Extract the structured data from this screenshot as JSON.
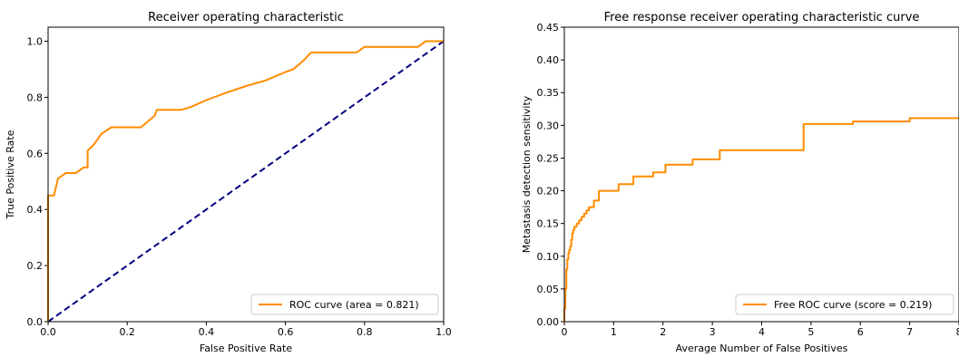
{
  "chart_data": [
    {
      "type": "line",
      "title": "Receiver operating characteristic",
      "xlabel": "False Positive Rate",
      "ylabel": "True Positive Rate",
      "xlim": [
        0.0,
        1.0
      ],
      "ylim": [
        0.0,
        1.05
      ],
      "x_ticks": [
        "0.0",
        "0.2",
        "0.4",
        "0.6",
        "0.8",
        "1.0"
      ],
      "y_ticks": [
        "0.0",
        "0.2",
        "0.4",
        "0.6",
        "0.8",
        "1.0"
      ],
      "legend_position": "lower-right",
      "series": [
        {
          "name": "ROC curve (area = 0.821)",
          "color": "#ff8c00",
          "style": "solid",
          "x": [
            0.0,
            0.0,
            0.0,
            0.015,
            0.025,
            0.045,
            0.07,
            0.09,
            0.1,
            0.1,
            0.115,
            0.135,
            0.16,
            0.19,
            0.235,
            0.245,
            0.27,
            0.275,
            0.3,
            0.335,
            0.36,
            0.4,
            0.45,
            0.5,
            0.55,
            0.6,
            0.62,
            0.645,
            0.665,
            0.78,
            0.79,
            0.8,
            0.87,
            0.935,
            0.955,
            1.0
          ],
          "y": [
            0.0,
            0.18,
            0.45,
            0.45,
            0.51,
            0.53,
            0.53,
            0.55,
            0.55,
            0.61,
            0.63,
            0.67,
            0.693,
            0.693,
            0.693,
            0.705,
            0.735,
            0.755,
            0.755,
            0.755,
            0.765,
            0.79,
            0.816,
            0.84,
            0.86,
            0.89,
            0.9,
            0.93,
            0.96,
            0.96,
            0.97,
            0.98,
            0.98,
            0.98,
            1.0,
            1.0
          ]
        },
        {
          "name": "",
          "color": "#000080",
          "style": "dashed",
          "x": [
            0.0,
            1.0
          ],
          "y": [
            0.0,
            1.0
          ]
        }
      ]
    },
    {
      "type": "line",
      "title": "Free response receiver operating characteristic curve",
      "xlabel": "Average Number of False Positives",
      "ylabel": "Metastasis detection sensitivity",
      "xlim": [
        0,
        8
      ],
      "ylim": [
        0.0,
        0.45
      ],
      "x_ticks": [
        "0",
        "1",
        "2",
        "3",
        "4",
        "5",
        "6",
        "7",
        "8"
      ],
      "y_ticks": [
        "0.00",
        "0.05",
        "0.10",
        "0.15",
        "0.20",
        "0.25",
        "0.30",
        "0.35",
        "0.40",
        "0.45"
      ],
      "legend_position": "lower-right",
      "series": [
        {
          "name": "Free ROC curve (score = 0.219)",
          "color": "#ff8c00",
          "style": "step",
          "x": [
            0.0,
            0.0,
            0.02,
            0.04,
            0.06,
            0.08,
            0.1,
            0.12,
            0.14,
            0.16,
            0.18,
            0.2,
            0.25,
            0.3,
            0.35,
            0.4,
            0.45,
            0.5,
            0.6,
            0.7,
            0.8,
            1.0,
            1.1,
            1.3,
            1.4,
            1.6,
            1.8,
            2.05,
            2.1,
            2.6,
            2.65,
            3.15,
            3.2,
            4.8,
            4.85,
            5.8,
            5.85,
            6.95,
            7.0,
            8.0
          ],
          "y": [
            0.0,
            0.02,
            0.05,
            0.08,
            0.095,
            0.105,
            0.11,
            0.115,
            0.125,
            0.135,
            0.14,
            0.145,
            0.15,
            0.155,
            0.16,
            0.165,
            0.17,
            0.175,
            0.185,
            0.2,
            0.2,
            0.2,
            0.21,
            0.21,
            0.222,
            0.222,
            0.228,
            0.24,
            0.24,
            0.248,
            0.248,
            0.262,
            0.262,
            0.262,
            0.302,
            0.302,
            0.306,
            0.306,
            0.311,
            0.311
          ]
        }
      ]
    }
  ]
}
